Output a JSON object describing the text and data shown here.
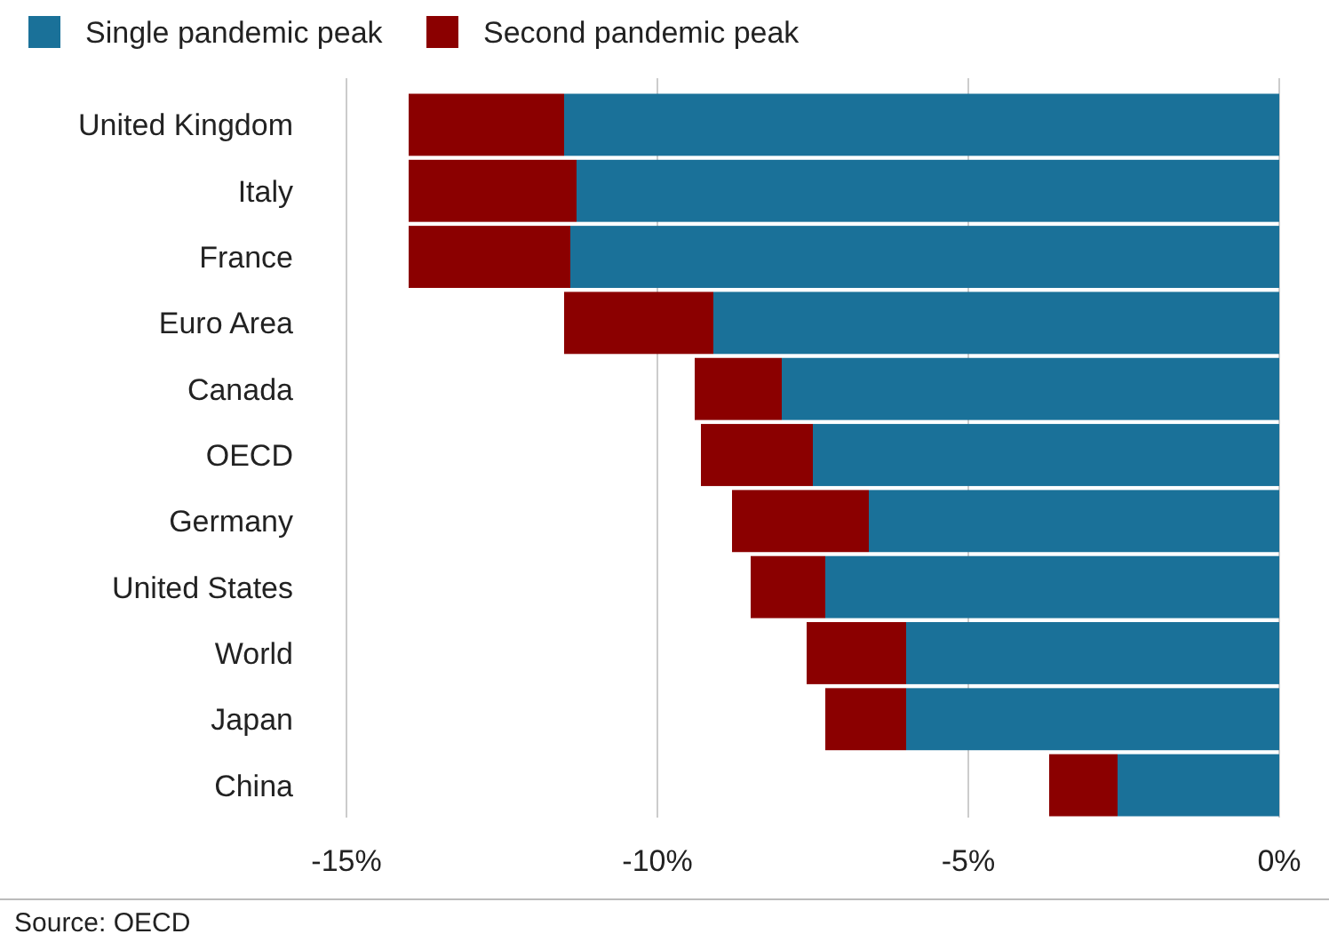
{
  "chart_data": {
    "type": "bar",
    "orientation": "horizontal",
    "stacked": true,
    "categories": [
      "United Kingdom",
      "Italy",
      "France",
      "Euro Area",
      "Canada",
      "OECD",
      "Germany",
      "United States",
      "World",
      "Japan",
      "China"
    ],
    "series": [
      {
        "name": "Single pandemic peak",
        "color": "#1a7199",
        "values": [
          -11.5,
          -11.3,
          -11.4,
          -9.1,
          -8.0,
          -7.5,
          -6.6,
          -7.3,
          -6.0,
          -6.0,
          -2.6
        ]
      },
      {
        "name": "Second pandemic peak",
        "color": "#8b0000",
        "values": [
          -2.5,
          -2.7,
          -2.6,
          -2.4,
          -1.4,
          -1.8,
          -2.2,
          -1.2,
          -1.6,
          -1.3,
          -1.1
        ]
      }
    ],
    "xlim": [
      -15,
      0
    ],
    "xticks": [
      {
        "value": -15,
        "label": "-15%"
      },
      {
        "value": -10,
        "label": "-10%"
      },
      {
        "value": -5,
        "label": "-5%"
      },
      {
        "value": 0,
        "label": "0%"
      }
    ],
    "grid": "x",
    "legend": "top left",
    "annotations": [
      "Source: OECD"
    ]
  }
}
